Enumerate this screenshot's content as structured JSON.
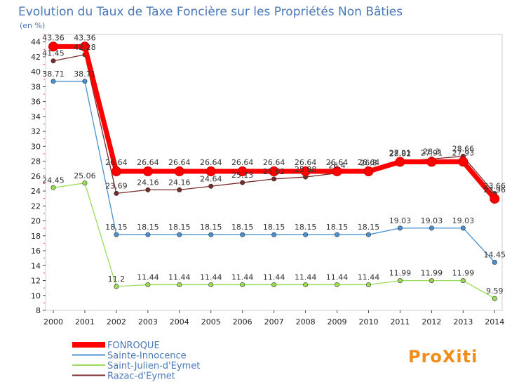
{
  "chart_data": {
    "type": "line",
    "title": "Evolution du Taux de Taxe Foncière sur les Propriétés Non Bâties",
    "ylabel": "(en %)",
    "xlabel": "",
    "ylim": [
      8,
      45
    ],
    "yticks": [
      8,
      10,
      12,
      14,
      16,
      18,
      20,
      22,
      24,
      26,
      28,
      30,
      32,
      34,
      36,
      38,
      40,
      42,
      44
    ],
    "x": [
      "2000",
      "2001",
      "2002",
      "2003",
      "2004",
      "2005",
      "2006",
      "2007",
      "2008",
      "2009",
      "2010",
      "2011",
      "2012",
      "2013",
      "2014"
    ],
    "series": [
      {
        "name": "FONROQUE",
        "color": "#ff0000",
        "values": [
          43.36,
          43.36,
          26.64,
          26.64,
          26.64,
          26.64,
          26.64,
          26.64,
          26.64,
          26.64,
          26.64,
          27.91,
          27.91,
          27.93,
          22.96
        ],
        "labels": [
          "43.36",
          "43.36",
          "26.64",
          "26.64",
          "26.64",
          "26.64",
          "26.64",
          "26.64",
          "26.64",
          "26.64",
          "26.64",
          "27.91",
          "27.91",
          "27.93",
          "22.96"
        ]
      },
      {
        "name": "Sainte-Innocence",
        "color": "#4a90d0",
        "values": [
          38.71,
          38.71,
          18.15,
          18.15,
          18.15,
          18.15,
          18.15,
          18.15,
          18.15,
          18.15,
          18.15,
          19.03,
          19.03,
          19.03,
          14.45
        ],
        "labels": [
          "38.71",
          "38.71",
          "18.15",
          "18.15",
          "18.15",
          "18.15",
          "18.15",
          "18.15",
          "18.15",
          "18.15",
          "18.15",
          "19.03",
          "19.03",
          "19.03",
          "14.45"
        ]
      },
      {
        "name": "Saint-Julien-d'Eymet",
        "color": "#99dd55",
        "values": [
          24.45,
          25.06,
          11.2,
          11.44,
          11.44,
          11.44,
          11.44,
          11.44,
          11.44,
          11.44,
          11.44,
          11.99,
          11.99,
          11.99,
          9.59
        ],
        "labels": [
          "24.45",
          "25.06",
          "11.2",
          "11.44",
          "11.44",
          "11.44",
          "11.44",
          "11.44",
          "11.44",
          "11.44",
          "11.44",
          "11.99",
          "11.99",
          "11.99",
          "9.59"
        ]
      },
      {
        "name": "Razac-d'Eymet",
        "color": "#7a2a2a",
        "values": [
          41.45,
          42.28,
          23.69,
          24.16,
          24.16,
          24.64,
          25.13,
          25.62,
          25.88,
          26.4,
          26.8,
          28.02,
          28.3,
          28.66,
          23.66
        ],
        "labels": [
          "41.45",
          "42.28",
          "23.69",
          "24.16",
          "24.16",
          "24.64",
          "25.13",
          "25.62",
          "25.88",
          "26.4",
          "26.8",
          "28.02",
          "28.3",
          "28.66",
          "23.66"
        ]
      }
    ],
    "legend": [
      "FONROQUE",
      "Sainte-Innocence",
      "Saint-Julien-d'Eymet",
      "Razac-d'Eymet"
    ],
    "legend_position": "bottom-left",
    "grid": false
  },
  "logo": {
    "text": "ProXiti"
  }
}
